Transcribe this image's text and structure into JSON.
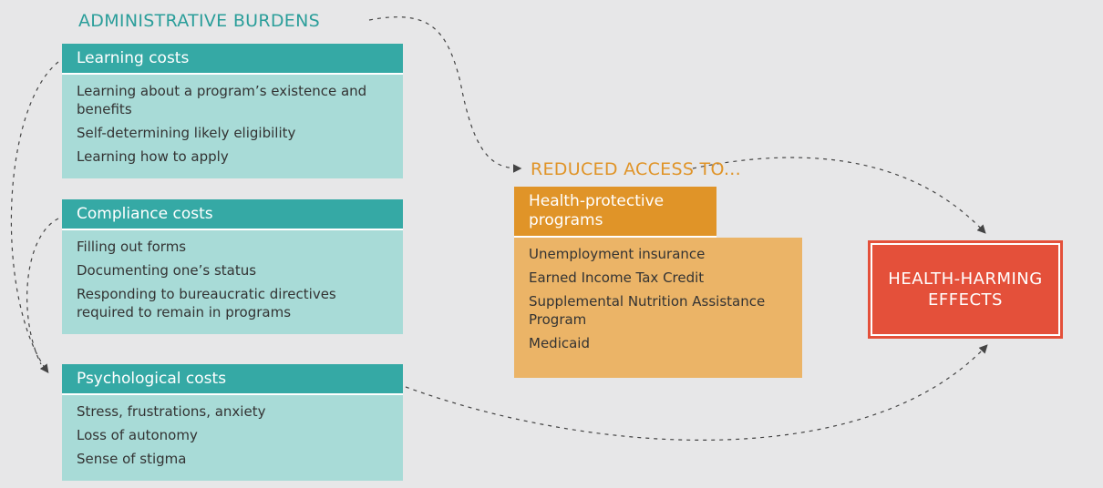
{
  "left_title": "ADMINISTRATIVE BURDENS",
  "groups": [
    {
      "title": "Learning costs",
      "items": [
        "Learning about a program’s existence and benefits",
        "Self-determining likely eligibility",
        "Learning how to apply"
      ]
    },
    {
      "title": "Compliance costs",
      "items": [
        "Filling out forms",
        "Documenting one’s status",
        "Responding to bureaucratic directives required to remain in programs"
      ]
    },
    {
      "title": "Psychological costs",
      "items": [
        "Stress, frustrations, anxiety",
        "Loss of autonomy",
        "Sense of stigma"
      ]
    }
  ],
  "middle_title": "REDUCED ACCESS TO...",
  "programs": {
    "title": "Health-protective programs",
    "items": [
      "Unemployment insurance",
      "Earned Income Tax Credit",
      "Supplemental Nutrition Assistance Program",
      "Medicaid"
    ]
  },
  "effects": "HEALTH-HARMING EFFECTS"
}
